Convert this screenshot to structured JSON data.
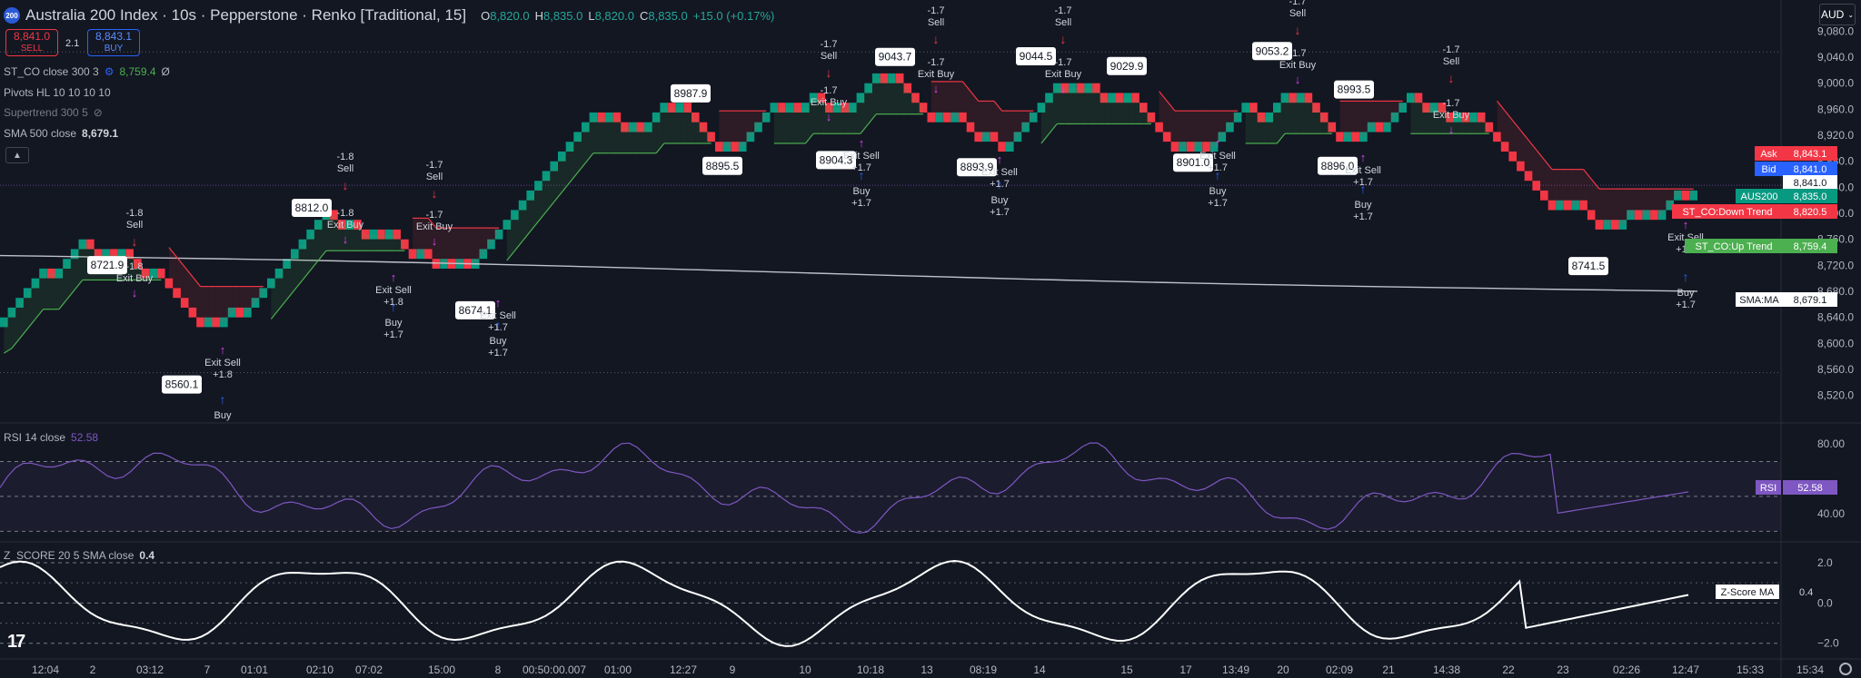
{
  "header": {
    "symbol_badge": "200",
    "title": "Australia 200 Index · 10s · Pepperstone · Renko [Traditional, 15]",
    "ohlc": [
      {
        "k": "O",
        "v": "8,820.0"
      },
      {
        "k": "H",
        "v": "8,835.0"
      },
      {
        "k": "L",
        "v": "8,820.0"
      },
      {
        "k": "C",
        "v": "8,835.0"
      },
      {
        "k": "",
        "v": "+15.0 (+0.17%)"
      }
    ],
    "sell_price": "8,841.0",
    "sell_label": "SELL",
    "buy_price": "8,843.1",
    "buy_label": "BUY",
    "spread": "2.1",
    "currency": "AUD"
  },
  "indicators": {
    "st_co": {
      "name": "ST_CO close 300 3",
      "value": "8,759.4",
      "suffix": "Ø"
    },
    "pivots": {
      "name": "Pivots HL 10 10 10 10"
    },
    "supertrend": {
      "name": "Supertrend 300 5"
    },
    "sma": {
      "name": "SMA 500 close",
      "value": "8,679.1"
    },
    "rsi": {
      "name": "RSI 14 close",
      "value": "52.58"
    },
    "zscore": {
      "name": "Z_SCORE 20 5 SMA close",
      "value": "0.4"
    }
  },
  "colors": {
    "background": "#131722",
    "up": "#089981",
    "down": "#f23645",
    "rsi_line": "#7e57c2",
    "st_up": "#4caf50",
    "st_down": "#f23645",
    "buy_arrow": "#2962ff",
    "exit_arrow": "#e040fb",
    "sma": "#d1d4dc"
  },
  "chart_data": [
    {
      "type": "renko",
      "box_size": 15,
      "yticks": [
        8520,
        8560,
        8600,
        8640,
        8680,
        8720,
        8760,
        8800,
        8840,
        8880,
        8920,
        8960,
        9000,
        9040,
        9080
      ],
      "ytick_labels": [
        "8,520.0",
        "8,560.0",
        "8,600.0",
        "8,640.0",
        "8,680.0",
        "8,720.0",
        "8,760.0",
        "8,800.0",
        "8,840.0",
        "8,880.0",
        "8,920.0",
        "8,960.0",
        "9,000.0",
        "9,040.0",
        "9,080.0"
      ],
      "ylim": [
        8500,
        9100
      ],
      "xtick_labels": [
        "12:04",
        "2",
        "03:12",
        "7",
        "01:01",
        "02:10",
        "07:02",
        "15:00",
        "8",
        "00:50:00.007",
        "01:00",
        "12:27",
        "9",
        "10",
        "10:18",
        "13",
        "08:19",
        "14",
        "15",
        "17",
        "13:49",
        "20",
        "02:09",
        "21",
        "14:38",
        "22",
        "23",
        "02:26",
        "12:47",
        "15:33",
        "15:34"
      ],
      "pivots": [
        "8721.9",
        "8560.1",
        "8812.0",
        "8674.1",
        "8987.9",
        "8895.5",
        "8904.3",
        "9043.7",
        "8893.9",
        "9044.5",
        "9029.9",
        "8901.0",
        "9053.2",
        "8896.0",
        "8993.5",
        "8741.5"
      ],
      "signal_labels": {
        "sell": "Sell",
        "buy": "Buy",
        "exit_buy": "Exit Buy",
        "exit_sell": "Exit Sell",
        "minus": "-1.7",
        "plus": "+1.7",
        "minus18": "-1.8",
        "plus18": "+1.8"
      },
      "right_labels": [
        {
          "name": "Ask",
          "value": "8,843.1"
        },
        {
          "name": "Bid",
          "value": "8,841.0"
        },
        {
          "name": "",
          "value": "8,841.0"
        },
        {
          "name": "AUS200",
          "value": "8,835.0"
        },
        {
          "name": "ST_CO:Down Trend",
          "value": "8,820.5"
        },
        {
          "name": "ST_CO:Up Trend",
          "value": "8,759.4"
        },
        {
          "name": "SMA:MA",
          "value": "8,679.1"
        }
      ]
    },
    {
      "type": "line",
      "name": "RSI",
      "ylim": [
        25,
        90
      ],
      "yticks": [
        40,
        80
      ],
      "ytick_labels": [
        "40.00",
        "80.00"
      ],
      "bands": [
        30,
        50,
        70
      ],
      "last": "52.58"
    },
    {
      "type": "line",
      "name": "Z-Score MA",
      "ylim": [
        -2.6,
        2.9
      ],
      "yticks": [
        2,
        0,
        -2
      ],
      "ytick_labels": [
        "2.0",
        "0.0",
        "−2.0"
      ],
      "last": "0.4"
    }
  ]
}
